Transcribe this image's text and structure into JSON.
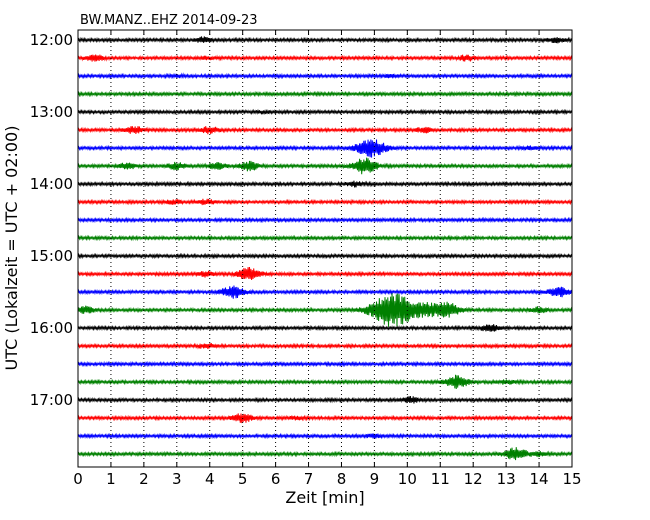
{
  "chart_data": {
    "type": "line",
    "title": "BW.MANZ..EHZ 2014-09-23",
    "xlabel": "Zeit  [min]",
    "ylabel": "UTC (Lokalzeit = UTC + 02:00)",
    "xlim": [
      0,
      15
    ],
    "x_ticks": [
      "0",
      "1",
      "2",
      "3",
      "4",
      "5",
      "6",
      "7",
      "8",
      "9",
      "10",
      "11",
      "12",
      "13",
      "14",
      "15"
    ],
    "y_ticks": [
      "12:00",
      "13:00",
      "14:00",
      "15:00",
      "16:00",
      "17:00"
    ],
    "grid_x": true,
    "trace_minutes": 15,
    "trace_colors": [
      "#000000",
      "#ff0000",
      "#0000ff",
      "#008000"
    ],
    "traces": [
      {
        "start": "12:00",
        "events": [
          {
            "t": 3.8,
            "a": 0.25
          },
          {
            "t": 14.5,
            "a": 0.25
          }
        ]
      },
      {
        "start": "12:15",
        "events": [
          {
            "t": 0.5,
            "a": 0.35
          },
          {
            "t": 3.9,
            "a": 0.15
          },
          {
            "t": 11.8,
            "a": 0.3
          }
        ]
      },
      {
        "start": "12:30",
        "events": [
          {
            "t": 3.0,
            "a": 0.12
          },
          {
            "t": 9.5,
            "a": 0.12
          }
        ]
      },
      {
        "start": "12:45",
        "events": []
      },
      {
        "start": "13:00",
        "events": [
          {
            "t": 5.6,
            "a": 0.12
          }
        ]
      },
      {
        "start": "13:15",
        "events": [
          {
            "t": 1.7,
            "a": 0.35
          },
          {
            "t": 4.0,
            "a": 0.35
          },
          {
            "t": 10.5,
            "a": 0.25
          }
        ]
      },
      {
        "start": "13:30",
        "events": [
          {
            "t": 8.9,
            "a": 1.0
          },
          {
            "t": 13.7,
            "a": 0.15
          }
        ]
      },
      {
        "start": "13:45",
        "events": [
          {
            "t": 1.5,
            "a": 0.3
          },
          {
            "t": 3.0,
            "a": 0.35
          },
          {
            "t": 4.2,
            "a": 0.35
          },
          {
            "t": 5.2,
            "a": 0.45
          },
          {
            "t": 8.7,
            "a": 0.8
          }
        ]
      },
      {
        "start": "14:00",
        "events": [
          {
            "t": 8.4,
            "a": 0.25
          }
        ]
      },
      {
        "start": "14:15",
        "events": [
          {
            "t": 2.9,
            "a": 0.2
          },
          {
            "t": 3.9,
            "a": 0.25
          }
        ]
      },
      {
        "start": "14:30",
        "events": []
      },
      {
        "start": "14:45",
        "events": []
      },
      {
        "start": "15:00",
        "events": []
      },
      {
        "start": "15:15",
        "events": [
          {
            "t": 3.9,
            "a": 0.25
          },
          {
            "t": 5.2,
            "a": 0.65
          }
        ]
      },
      {
        "start": "15:30",
        "events": [
          {
            "t": 4.7,
            "a": 0.65
          },
          {
            "t": 14.6,
            "a": 0.5
          }
        ]
      },
      {
        "start": "15:45",
        "events": [
          {
            "t": 0.2,
            "a": 0.35
          },
          {
            "t": 9.6,
            "a": 1.9
          },
          {
            "t": 10.6,
            "a": 0.5
          },
          {
            "t": 11.2,
            "a": 0.8
          },
          {
            "t": 14.0,
            "a": 0.3
          }
        ]
      },
      {
        "start": "16:00",
        "events": [
          {
            "t": 12.5,
            "a": 0.35
          }
        ]
      },
      {
        "start": "16:15",
        "events": [
          {
            "t": 3.9,
            "a": 0.25
          }
        ]
      },
      {
        "start": "16:30",
        "events": []
      },
      {
        "start": "16:45",
        "events": [
          {
            "t": 11.5,
            "a": 0.65
          },
          {
            "t": 13.0,
            "a": 0.2
          }
        ]
      },
      {
        "start": "17:00",
        "events": [
          {
            "t": 10.1,
            "a": 0.3
          }
        ]
      },
      {
        "start": "17:15",
        "events": [
          {
            "t": 5.0,
            "a": 0.45
          },
          {
            "t": 6.6,
            "a": 0.15
          }
        ]
      },
      {
        "start": "17:30",
        "events": [
          {
            "t": 9.0,
            "a": 0.2
          }
        ]
      },
      {
        "start": "17:45",
        "events": [
          {
            "t": 13.3,
            "a": 0.65
          },
          {
            "t": 14.0,
            "a": 0.2
          }
        ]
      }
    ]
  }
}
